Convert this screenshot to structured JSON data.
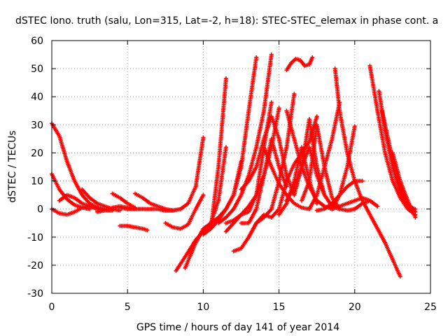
{
  "chart_data": {
    "type": "scatter",
    "title": "dSTEC Iono. truth (salu, Lon=315, Lat=-2, h=18): STEC-STEC_elemax in phase cont. a",
    "xlabel": "GPS time / hours of day 141 of year 2014",
    "ylabel": "dSTEC  / TECUs",
    "xlim": [
      0,
      25
    ],
    "ylim": [
      -30,
      60
    ],
    "x_ticks": [
      0,
      5,
      10,
      15,
      20,
      25
    ],
    "y_ticks": [
      -30,
      -20,
      -10,
      0,
      10,
      20,
      30,
      40,
      50,
      60
    ],
    "x_tick_labels": [
      "0",
      "5",
      "10",
      "15",
      "20",
      "25"
    ],
    "y_tick_labels": [
      "-30",
      "-20",
      "-10",
      "0",
      "10",
      "20",
      "30",
      "40",
      "50",
      "60"
    ],
    "grid": true,
    "marker": "+",
    "color": "#ff0000",
    "series": [
      {
        "x": [
          0.0,
          0.5,
          1.0,
          1.5,
          2.0,
          2.5,
          3.0,
          3.5
        ],
        "y": [
          30.5,
          26.0,
          17.0,
          10.0,
          5.0,
          2.0,
          0.5,
          0.0
        ]
      },
      {
        "x": [
          0.0,
          0.5,
          1.0,
          1.5,
          2.0,
          2.5
        ],
        "y": [
          12.5,
          7.0,
          3.5,
          1.5,
          0.5,
          0.0
        ]
      },
      {
        "x": [
          0.0,
          0.5,
          1.0,
          1.5,
          2.0,
          2.5,
          3.0,
          3.5
        ],
        "y": [
          0.0,
          -1.5,
          -2.0,
          -1.0,
          0.5,
          1.0,
          0.5,
          0.0
        ]
      },
      {
        "x": [
          0.5,
          1.0,
          1.5,
          2.0,
          2.5,
          3.0,
          3.5,
          4.0
        ],
        "y": [
          3.0,
          5.0,
          4.0,
          2.0,
          1.0,
          0.0,
          -0.5,
          -0.5
        ]
      },
      {
        "x": [
          2.0,
          2.5,
          3.0,
          3.5,
          4.0,
          4.5
        ],
        "y": [
          7.0,
          4.0,
          2.0,
          1.0,
          0.0,
          -0.5
        ]
      },
      {
        "x": [
          3.0,
          3.5,
          4.0,
          4.5,
          5.0,
          5.5,
          6.0
        ],
        "y": [
          -1.0,
          -0.5,
          0.5,
          1.0,
          0.5,
          0.0,
          0.0
        ]
      },
      {
        "x": [
          4.0,
          4.5,
          5.0,
          5.5
        ],
        "y": [
          5.5,
          4.0,
          2.0,
          0.5
        ]
      },
      {
        "x": [
          4.5,
          5.0,
          5.5,
          6.0,
          6.5,
          7.0,
          7.5,
          8.0,
          8.5
        ],
        "y": [
          0.5,
          0.0,
          0.0,
          0.0,
          0.0,
          0.0,
          -0.5,
          -0.5,
          0.0
        ]
      },
      {
        "x": [
          5.5,
          6.0,
          6.5,
          7.0,
          7.5,
          8.0
        ],
        "y": [
          5.5,
          4.0,
          2.0,
          1.0,
          0.0,
          -0.5
        ]
      },
      {
        "x": [
          7.0,
          7.5,
          8.0,
          8.5,
          9.0,
          9.5,
          10.0
        ],
        "y": [
          0.0,
          -0.5,
          -0.5,
          0.0,
          2.0,
          8.0,
          25.5
        ]
      },
      {
        "x": [
          7.5,
          8.0,
          8.5,
          9.0,
          9.5,
          10.0
        ],
        "y": [
          -5.0,
          -6.5,
          -7.0,
          -5.5,
          0.0,
          5.0
        ]
      },
      {
        "x": [
          4.5,
          5.0,
          5.5,
          6.0,
          6.3
        ],
        "y": [
          -6.0,
          -6.0,
          -6.5,
          -7.0,
          -7.5
        ]
      },
      {
        "x": [
          8.2,
          8.8,
          9.5,
          10.0,
          10.5,
          11.0,
          11.5
        ],
        "y": [
          -22.0,
          -17.0,
          -11.0,
          -8.0,
          -5.0,
          3.0,
          22.0
        ]
      },
      {
        "x": [
          8.8,
          9.5,
          10.0,
          10.5,
          11.0,
          11.5,
          12.0,
          12.5
        ],
        "y": [
          -21.0,
          -12.0,
          -7.0,
          -5.0,
          -3.0,
          0.0,
          5.0,
          17.0
        ]
      },
      {
        "x": [
          10.0,
          10.5,
          11.0,
          11.5
        ],
        "y": [
          -8.0,
          -7.0,
          15.0,
          46.5
        ]
      },
      {
        "x": [
          10.0,
          10.5,
          11.0,
          11.5,
          12.0,
          12.5,
          13.0,
          13.5
        ],
        "y": [
          -9.0,
          -7.0,
          -4.0,
          0.0,
          5.0,
          15.0,
          35.0,
          54.0
        ]
      },
      {
        "x": [
          11.0,
          11.5,
          12.0,
          12.5,
          13.0,
          13.5,
          14.0,
          14.5
        ],
        "y": [
          -5.0,
          -3.0,
          0.0,
          5.0,
          12.0,
          22.0,
          35.0,
          55.0
        ]
      },
      {
        "x": [
          11.5,
          12.0,
          12.5,
          13.0,
          13.5,
          14.0,
          14.5,
          15.0
        ],
        "y": [
          -8.0,
          -5.0,
          -2.0,
          1.0,
          5.0,
          12.0,
          22.0,
          36.0
        ]
      },
      {
        "x": [
          11.5,
          12.0,
          12.5,
          13.0,
          13.5,
          14.0,
          14.5
        ],
        "y": [
          -5.0,
          -4.0,
          -2.0,
          -1.0,
          5.0,
          22.0,
          38.0
        ]
      },
      {
        "x": [
          12.0,
          12.5,
          13.0,
          13.5,
          14.0,
          14.5,
          15.0,
          15.5,
          16.0
        ],
        "y": [
          -15.0,
          -14.0,
          -10.0,
          -5.0,
          -3.0,
          0.0,
          10.0,
          22.0,
          41.0
        ]
      },
      {
        "x": [
          12.5,
          13.0,
          13.5,
          14.0,
          14.5,
          15.0,
          15.5,
          16.0
        ],
        "y": [
          7.0,
          10.0,
          15.0,
          25.0,
          33.0,
          25.0,
          12.0,
          5.0
        ]
      },
      {
        "x": [
          12.5,
          13.0,
          13.5,
          14.0,
          14.5,
          15.0,
          15.5
        ],
        "y": [
          -5.0,
          -5.0,
          0.0,
          12.0,
          25.0,
          15.0,
          8.0
        ]
      },
      {
        "x": [
          13.0,
          13.5,
          14.0,
          14.5,
          15.0,
          15.5,
          16.0,
          16.5,
          17.0,
          17.5
        ],
        "y": [
          -10.0,
          -5.0,
          -2.0,
          -3.0,
          0.0,
          10.0,
          16.0,
          20.0,
          24.0,
          33.0
        ]
      },
      {
        "x": [
          14.0,
          14.5,
          15.0,
          15.5,
          16.0,
          16.5,
          17.0
        ],
        "y": [
          22.0,
          15.0,
          9.0,
          5.0,
          2.0,
          0.5,
          0.0
        ]
      },
      {
        "x": [
          15.0,
          15.5,
          16.0,
          16.5,
          17.0,
          17.5
        ],
        "y": [
          -2.0,
          2.0,
          10.0,
          22.0,
          10.0,
          2.0
        ]
      },
      {
        "x": [
          15.5,
          16.0,
          16.5,
          17.0,
          17.5,
          18.0,
          18.5
        ],
        "y": [
          3.0,
          8.0,
          15.0,
          22.0,
          12.0,
          5.0,
          1.0
        ]
      },
      {
        "x": [
          15.5,
          16.0,
          16.5,
          17.0,
          17.5,
          18.0,
          18.5
        ],
        "y": [
          35.0,
          25.0,
          15.0,
          8.0,
          3.0,
          1.0,
          0.0
        ]
      },
      {
        "x": [
          15.5,
          15.8,
          16.1,
          16.4,
          16.7,
          17.0,
          17.2
        ],
        "y": [
          49.5,
          52.0,
          53.5,
          53.0,
          51.0,
          51.5,
          54.0
        ]
      },
      {
        "x": [
          16.0,
          16.5,
          17.0,
          17.5,
          18.0,
          18.5,
          19.0
        ],
        "y": [
          5.0,
          15.0,
          32.0,
          15.0,
          5.0,
          1.0,
          0.0
        ]
      },
      {
        "x": [
          16.5,
          17.0,
          17.5,
          18.0,
          18.5,
          19.0,
          19.5,
          20.0
        ],
        "y": [
          3.0,
          10.0,
          30.0,
          15.0,
          4.0,
          0.0,
          -0.5,
          0.0
        ]
      },
      {
        "x": [
          17.0,
          17.5,
          18.0,
          18.5,
          19.0
        ],
        "y": [
          0.0,
          5.0,
          15.0,
          25.0,
          38.0
        ]
      },
      {
        "x": [
          17.5,
          18.0,
          18.5,
          19.0,
          19.5,
          20.0,
          20.5
        ],
        "y": [
          -0.5,
          0.0,
          2.0,
          5.0,
          8.0,
          10.0,
          10.0
        ]
      },
      {
        "x": [
          18.5,
          19.0,
          19.5,
          20.0,
          20.5,
          21.0,
          21.5
        ],
        "y": [
          0.0,
          1.0,
          2.0,
          3.0,
          4.0,
          3.0,
          1.0
        ]
      },
      {
        "x": [
          18.5,
          19.0,
          19.5,
          20.0
        ],
        "y": [
          0.0,
          5.0,
          15.0,
          29.5
        ]
      },
      {
        "x": [
          18.7,
          19.0,
          19.5,
          20.0,
          20.5,
          21.0,
          21.5,
          22.0,
          22.5,
          23.0
        ],
        "y": [
          50.0,
          35.0,
          20.0,
          10.0,
          3.0,
          -2.0,
          -7.0,
          -12.0,
          -18.0,
          -24.0
        ]
      },
      {
        "x": [
          20.0,
          20.5,
          21.0,
          21.5
        ],
        "y": [
          0.0,
          2.0,
          3.0,
          1.0
        ]
      },
      {
        "x": [
          21.0,
          21.5,
          22.0,
          22.5,
          23.0,
          23.5,
          24.0
        ],
        "y": [
          51.0,
          35.0,
          20.0,
          10.0,
          4.0,
          0.0,
          -2.0
        ]
      },
      {
        "x": [
          21.6,
          22.0,
          22.5,
          23.0,
          23.5,
          24.0
        ],
        "y": [
          42.0,
          28.0,
          15.0,
          6.0,
          1.0,
          0.0
        ]
      },
      {
        "x": [
          21.8,
          22.2,
          22.6,
          23.0,
          23.5,
          24.0
        ],
        "y": [
          35.0,
          25.0,
          15.0,
          8.0,
          2.0,
          -1.0
        ]
      },
      {
        "x": [
          22.5,
          23.0,
          23.5,
          24.0
        ],
        "y": [
          20.0,
          10.0,
          3.0,
          -3.0
        ]
      }
    ]
  }
}
